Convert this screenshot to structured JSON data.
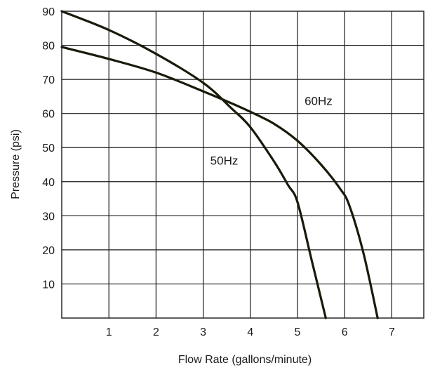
{
  "chart_data": {
    "type": "line",
    "xlabel": "Flow Rate (gallons/minute)",
    "ylabel": "Pressure (psi)",
    "xlim": [
      0,
      7.8
    ],
    "ylim": [
      0,
      90
    ],
    "x_ticks": [
      1,
      2,
      3,
      4,
      5,
      6,
      7
    ],
    "x_tick_labels": [
      "1",
      "2",
      "3",
      "4",
      "5",
      "6",
      "7"
    ],
    "y_ticks": [
      10,
      20,
      30,
      40,
      50,
      60,
      70,
      80,
      90
    ],
    "y_tick_labels": [
      "10",
      "20",
      "30",
      "40",
      "50",
      "60",
      "70",
      "80",
      "90"
    ],
    "grid": true,
    "series": [
      {
        "name": "50Hz",
        "color": "#1a1a0a",
        "x": [
          0,
          1,
          2,
          3,
          3.6,
          4,
          4.5,
          4.8,
          5.0,
          5.3,
          5.6
        ],
        "y": [
          90,
          84.5,
          77.5,
          69,
          61.5,
          56,
          46,
          39,
          34,
          17,
          0
        ]
      },
      {
        "name": "60Hz",
        "color": "#1a1a0a",
        "x": [
          0,
          1,
          2,
          3,
          3.6,
          4,
          4.5,
          5,
          5.5,
          5.9,
          6.1,
          6.4,
          6.7
        ],
        "y": [
          79.5,
          76,
          72,
          66.5,
          63,
          60.5,
          57,
          52,
          45,
          38,
          33,
          19,
          0
        ]
      }
    ],
    "annotations": [
      {
        "text": "60Hz",
        "x": 5.15,
        "y": 62.5
      },
      {
        "text": "50Hz",
        "x": 3.15,
        "y": 45
      }
    ]
  }
}
